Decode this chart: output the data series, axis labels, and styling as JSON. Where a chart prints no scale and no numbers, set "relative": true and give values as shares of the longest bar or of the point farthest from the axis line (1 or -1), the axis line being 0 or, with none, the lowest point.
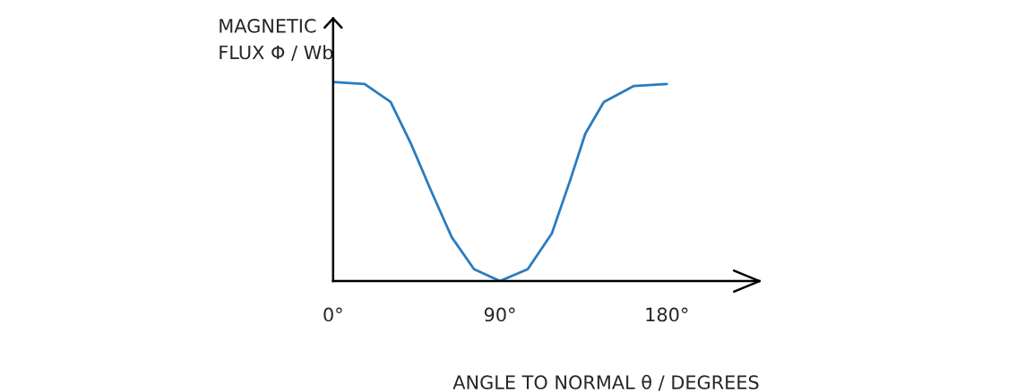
{
  "chart_data": {
    "type": "line",
    "relative": true,
    "xlabel": "ANGLE TO NORMAL θ / DEGREES",
    "ylabel": "MAGNETIC\nFLUX Φ / Wb",
    "x": [
      0,
      17,
      31,
      42,
      53,
      64,
      76,
      90,
      105,
      118,
      128,
      136,
      146,
      162,
      180
    ],
    "series": [
      {
        "color": "#2a7bc0",
        "values": [
          1.0,
          0.99,
          0.9,
          0.69,
          0.45,
          0.22,
          0.06,
          0,
          0.06,
          0.24,
          0.51,
          0.74,
          0.9,
          0.98,
          0.99
        ]
      }
    ],
    "xlim": [
      0,
      230
    ],
    "xticks": [
      {
        "value": 0,
        "label": "0°"
      },
      {
        "value": 90,
        "label": "90°"
      },
      {
        "value": 180,
        "label": "180°"
      }
    ],
    "grid": false,
    "legend": false,
    "marker": "none",
    "line_style": "solid",
    "tick_labels": "x"
  }
}
